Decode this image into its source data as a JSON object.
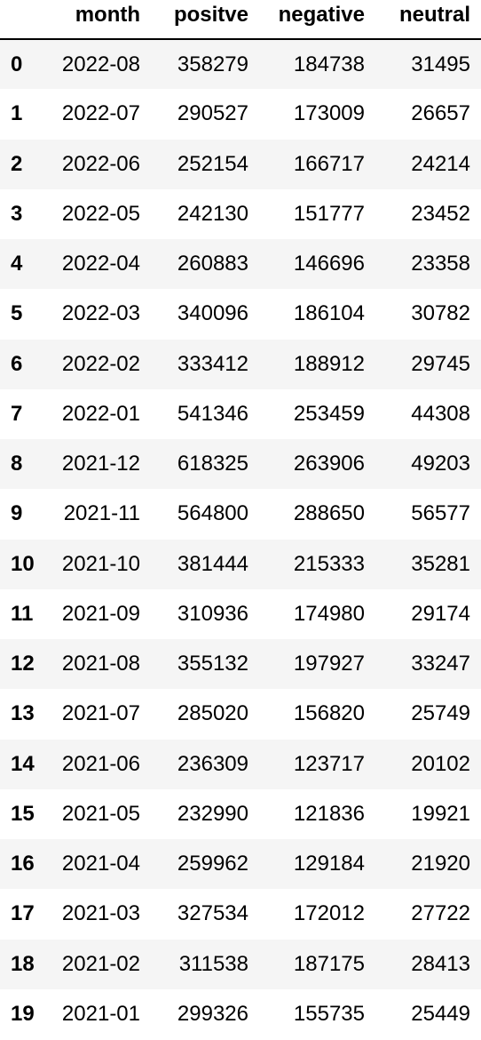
{
  "table": {
    "columns": [
      "month",
      "positve",
      "negative",
      "neutral"
    ],
    "rows": [
      {
        "index": "0",
        "month": "2022-08",
        "positve": "358279",
        "negative": "184738",
        "neutral": "31495"
      },
      {
        "index": "1",
        "month": "2022-07",
        "positve": "290527",
        "negative": "173009",
        "neutral": "26657"
      },
      {
        "index": "2",
        "month": "2022-06",
        "positve": "252154",
        "negative": "166717",
        "neutral": "24214"
      },
      {
        "index": "3",
        "month": "2022-05",
        "positve": "242130",
        "negative": "151777",
        "neutral": "23452"
      },
      {
        "index": "4",
        "month": "2022-04",
        "positve": "260883",
        "negative": "146696",
        "neutral": "23358"
      },
      {
        "index": "5",
        "month": "2022-03",
        "positve": "340096",
        "negative": "186104",
        "neutral": "30782"
      },
      {
        "index": "6",
        "month": "2022-02",
        "positve": "333412",
        "negative": "188912",
        "neutral": "29745"
      },
      {
        "index": "7",
        "month": "2022-01",
        "positve": "541346",
        "negative": "253459",
        "neutral": "44308"
      },
      {
        "index": "8",
        "month": "2021-12",
        "positve": "618325",
        "negative": "263906",
        "neutral": "49203"
      },
      {
        "index": "9",
        "month": "2021-11",
        "positve": "564800",
        "negative": "288650",
        "neutral": "56577"
      },
      {
        "index": "10",
        "month": "2021-10",
        "positve": "381444",
        "negative": "215333",
        "neutral": "35281"
      },
      {
        "index": "11",
        "month": "2021-09",
        "positve": "310936",
        "negative": "174980",
        "neutral": "29174"
      },
      {
        "index": "12",
        "month": "2021-08",
        "positve": "355132",
        "negative": "197927",
        "neutral": "33247"
      },
      {
        "index": "13",
        "month": "2021-07",
        "positve": "285020",
        "negative": "156820",
        "neutral": "25749"
      },
      {
        "index": "14",
        "month": "2021-06",
        "positve": "236309",
        "negative": "123717",
        "neutral": "20102"
      },
      {
        "index": "15",
        "month": "2021-05",
        "positve": "232990",
        "negative": "121836",
        "neutral": "19921"
      },
      {
        "index": "16",
        "month": "2021-04",
        "positve": "259962",
        "negative": "129184",
        "neutral": "21920"
      },
      {
        "index": "17",
        "month": "2021-03",
        "positve": "327534",
        "negative": "172012",
        "neutral": "27722"
      },
      {
        "index": "18",
        "month": "2021-02",
        "positve": "311538",
        "negative": "187175",
        "neutral": "28413"
      },
      {
        "index": "19",
        "month": "2021-01",
        "positve": "299326",
        "negative": "155735",
        "neutral": "25449"
      }
    ]
  }
}
